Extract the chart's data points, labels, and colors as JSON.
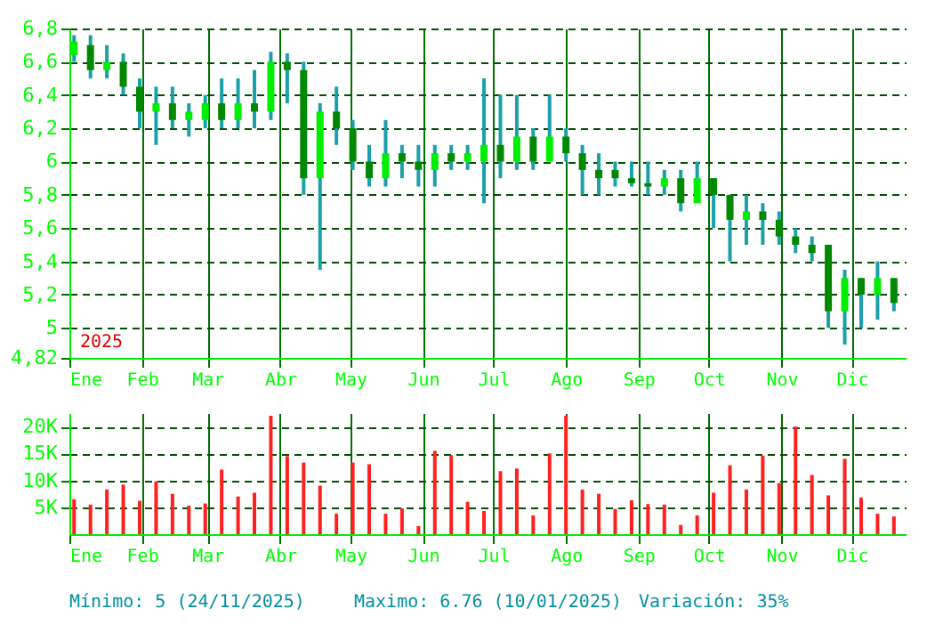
{
  "chart_data": [
    {
      "type": "candlestick",
      "color": "#1aa0a8",
      "grid": true,
      "annotations": [
        "2025"
      ],
      "colors": [
        "#00ee00",
        "#008800",
        "#00ee00",
        "#008800",
        "#008800",
        "#00ee00",
        "#008800",
        "#00ee00",
        "#00ee00",
        "#008800",
        "#00ee00",
        "#008800",
        "#00ee00",
        "#008800",
        "#008800",
        "#00ee00",
        "#008800",
        "#008800",
        "#008800",
        "#00ee00",
        "#008800",
        "#008800",
        "#00ee00",
        "#008800",
        "#00ee00",
        "#00ee00",
        "#008800",
        "#00ee00",
        "#008800",
        "#00ee00",
        "#008800",
        "#008800",
        "#008800",
        "#008800",
        "#008800",
        "#008800",
        "#00ee00",
        "#008800",
        "#00ee00",
        "#008800",
        "#008800",
        "#00ee00",
        "#008800",
        "#008800",
        "#008800",
        "#008800",
        "#008800",
        "#00ee00",
        "#008800",
        "#00ee00",
        "#008800"
      ],
      "x": [
        "2025-01-03",
        "2025-01-10",
        "2025-01-17",
        "2025-01-24",
        "2025-01-31",
        "2025-02-07",
        "2025-02-14",
        "2025-02-21",
        "2025-02-28",
        "2025-03-07",
        "2025-03-14",
        "2025-03-21",
        "2025-03-28",
        "2025-04-04",
        "2025-04-11",
        "2025-04-18",
        "2025-04-25",
        "2025-05-02",
        "2025-05-09",
        "2025-05-16",
        "2025-05-23",
        "2025-05-30",
        "2025-06-06",
        "2025-06-13",
        "2025-06-20",
        "2025-06-27",
        "2025-07-04",
        "2025-07-11",
        "2025-07-18",
        "2025-07-25",
        "2025-08-01",
        "2025-08-08",
        "2025-08-15",
        "2025-08-22",
        "2025-08-29",
        "2025-09-05",
        "2025-09-12",
        "2025-09-19",
        "2025-09-26",
        "2025-10-03",
        "2025-10-10",
        "2025-10-17",
        "2025-10-24",
        "2025-10-31",
        "2025-11-07",
        "2025-11-14",
        "2025-11-21",
        "2025-11-28",
        "2025-12-05",
        "2025-12-12",
        "2025-12-19"
      ],
      "ohlc": [
        [
          6.64,
          6.76,
          6.6,
          6.72
        ],
        [
          6.7,
          6.76,
          6.5,
          6.55
        ],
        [
          6.55,
          6.7,
          6.5,
          6.6
        ],
        [
          6.6,
          6.65,
          6.4,
          6.45
        ],
        [
          6.45,
          6.5,
          6.2,
          6.3
        ],
        [
          6.3,
          6.45,
          6.1,
          6.35
        ],
        [
          6.35,
          6.45,
          6.2,
          6.25
        ],
        [
          6.25,
          6.35,
          6.15,
          6.3
        ],
        [
          6.25,
          6.4,
          6.2,
          6.35
        ],
        [
          6.35,
          6.5,
          6.2,
          6.25
        ],
        [
          6.25,
          6.5,
          6.2,
          6.35
        ],
        [
          6.35,
          6.55,
          6.2,
          6.3
        ],
        [
          6.3,
          6.66,
          6.25,
          6.6
        ],
        [
          6.6,
          6.65,
          6.35,
          6.55
        ],
        [
          6.55,
          6.6,
          5.8,
          5.9
        ],
        [
          5.9,
          6.35,
          5.35,
          6.3
        ],
        [
          6.3,
          6.45,
          6.1,
          6.2
        ],
        [
          6.2,
          6.25,
          5.95,
          6.0
        ],
        [
          6.0,
          6.1,
          5.85,
          5.9
        ],
        [
          5.9,
          6.25,
          5.85,
          6.05
        ],
        [
          6.05,
          6.1,
          5.9,
          6.0
        ],
        [
          6.0,
          6.1,
          5.85,
          5.95
        ],
        [
          5.95,
          6.1,
          5.85,
          6.05
        ],
        [
          6.05,
          6.1,
          5.95,
          6.0
        ],
        [
          6.0,
          6.1,
          5.95,
          6.05
        ],
        [
          6.0,
          6.5,
          5.75,
          6.1
        ],
        [
          6.1,
          6.4,
          5.9,
          6.0
        ],
        [
          6.0,
          6.4,
          5.95,
          6.15
        ],
        [
          6.15,
          6.2,
          5.95,
          6.0
        ],
        [
          6.0,
          6.4,
          6.0,
          6.15
        ],
        [
          6.15,
          6.2,
          6.0,
          6.05
        ],
        [
          6.05,
          6.1,
          5.8,
          5.95
        ],
        [
          5.95,
          6.05,
          5.8,
          5.9
        ],
        [
          5.95,
          6.0,
          5.85,
          5.9
        ],
        [
          5.9,
          6.0,
          5.85,
          5.87
        ],
        [
          5.87,
          6.0,
          5.8,
          5.85
        ],
        [
          5.85,
          5.95,
          5.8,
          5.9
        ],
        [
          5.9,
          5.95,
          5.7,
          5.75
        ],
        [
          5.75,
          6.0,
          5.75,
          5.9
        ],
        [
          5.9,
          5.9,
          5.6,
          5.8
        ],
        [
          5.8,
          5.8,
          5.4,
          5.65
        ],
        [
          5.65,
          5.8,
          5.5,
          5.7
        ],
        [
          5.7,
          5.75,
          5.5,
          5.65
        ],
        [
          5.65,
          5.7,
          5.5,
          5.55
        ],
        [
          5.55,
          5.6,
          5.45,
          5.5
        ],
        [
          5.5,
          5.55,
          5.4,
          5.45
        ],
        [
          5.5,
          5.5,
          5.0,
          5.1
        ],
        [
          5.1,
          5.35,
          4.9,
          5.3
        ],
        [
          5.3,
          5.3,
          5.0,
          5.2
        ],
        [
          5.2,
          5.4,
          5.05,
          5.3
        ],
        [
          5.3,
          5.3,
          5.1,
          5.15
        ]
      ],
      "xlim": [
        "2025-01-01",
        "2025-12-24"
      ],
      "xticks": [
        {
          "value": "2025-01-01",
          "label": "Ene"
        },
        {
          "value": "2025-02-01",
          "label": "Feb"
        },
        {
          "value": "2025-03-01",
          "label": "Mar"
        },
        {
          "value": "2025-04-01",
          "label": "Abr"
        },
        {
          "value": "2025-05-01",
          "label": "May"
        },
        {
          "value": "2025-06-01",
          "label": "Jun"
        },
        {
          "value": "2025-07-01",
          "label": "Jul"
        },
        {
          "value": "2025-08-01",
          "label": "Ago"
        },
        {
          "value": "2025-09-01",
          "label": "Sep"
        },
        {
          "value": "2025-10-01",
          "label": "Oct"
        },
        {
          "value": "2025-11-01",
          "label": "Nov"
        },
        {
          "value": "2025-12-01",
          "label": "Dic"
        }
      ],
      "ylim": [
        4.82,
        6.8
      ],
      "yticks": [
        {
          "value": 4.82,
          "label": "4,82"
        },
        5,
        {
          "value": 5.2,
          "label": "5,2"
        },
        {
          "value": 5.4,
          "label": "5,4"
        },
        {
          "value": 5.6,
          "label": "5,6"
        },
        {
          "value": 5.8,
          "label": "5,8"
        },
        6,
        {
          "value": 6.2,
          "label": "6,2"
        },
        {
          "value": 6.4,
          "label": "6,4"
        },
        {
          "value": 6.6,
          "label": "6,6"
        },
        {
          "value": 6.8,
          "label": "6,8"
        }
      ]
    },
    {
      "type": "bar",
      "color": "#ff2020",
      "grid": true,
      "annotations": [
        "Mínimo: 5 (24/11/2025)",
        "Maximo: 6.76 (10/01/2025)",
        "Variación: 35%"
      ],
      "x": [
        "2025-01-03",
        "2025-01-10",
        "2025-01-17",
        "2025-01-24",
        "2025-01-31",
        "2025-02-07",
        "2025-02-14",
        "2025-02-21",
        "2025-02-28",
        "2025-03-07",
        "2025-03-14",
        "2025-03-21",
        "2025-03-28",
        "2025-04-04",
        "2025-04-11",
        "2025-04-18",
        "2025-04-25",
        "2025-05-02",
        "2025-05-09",
        "2025-05-16",
        "2025-05-23",
        "2025-05-30",
        "2025-06-06",
        "2025-06-13",
        "2025-06-20",
        "2025-06-27",
        "2025-07-04",
        "2025-07-11",
        "2025-07-18",
        "2025-07-25",
        "2025-08-01",
        "2025-08-08",
        "2025-08-15",
        "2025-08-22",
        "2025-08-29",
        "2025-09-05",
        "2025-09-12",
        "2025-09-19",
        "2025-09-26",
        "2025-10-03",
        "2025-10-10",
        "2025-10-17",
        "2025-10-24",
        "2025-10-31",
        "2025-11-07",
        "2025-11-14",
        "2025-11-21",
        "2025-11-28",
        "2025-12-05",
        "2025-12-12",
        "2025-12-19"
      ],
      "values": [
        6500,
        5500,
        8300,
        9200,
        6200,
        9800,
        7500,
        5300,
        5700,
        12000,
        7000,
        7700,
        22000,
        14500,
        13300,
        9000,
        3800,
        13300,
        13000,
        3800,
        4800,
        1500,
        15500,
        14700,
        6000,
        4300,
        11700,
        12200,
        3500,
        15000,
        22000,
        8300,
        7500,
        4700,
        6300,
        5600,
        5500,
        1700,
        3500,
        7700,
        12800,
        8300,
        14600,
        9500,
        20000,
        11000,
        7200,
        14000,
        6800,
        3800,
        3300
      ],
      "xlim": [
        "2025-01-01",
        "2025-12-24"
      ],
      "xticks": [
        {
          "value": "2025-01-01",
          "label": "Ene"
        },
        {
          "value": "2025-02-01",
          "label": "Feb"
        },
        {
          "value": "2025-03-01",
          "label": "Mar"
        },
        {
          "value": "2025-04-01",
          "label": "Abr"
        },
        {
          "value": "2025-05-01",
          "label": "May"
        },
        {
          "value": "2025-06-01",
          "label": "Jun"
        },
        {
          "value": "2025-07-01",
          "label": "Jul"
        },
        {
          "value": "2025-08-01",
          "label": "Ago"
        },
        {
          "value": "2025-09-01",
          "label": "Sep"
        },
        {
          "value": "2025-10-01",
          "label": "Oct"
        },
        {
          "value": "2025-11-01",
          "label": "Nov"
        },
        {
          "value": "2025-12-01",
          "label": "Dic"
        }
      ],
      "ylim": [
        0,
        22500
      ],
      "yticks": [
        {
          "value": 5000,
          "label": "5K"
        },
        {
          "value": 10000,
          "label": "10K"
        },
        {
          "value": 15000,
          "label": "15K"
        },
        {
          "value": 20000,
          "label": "20K"
        }
      ]
    }
  ]
}
